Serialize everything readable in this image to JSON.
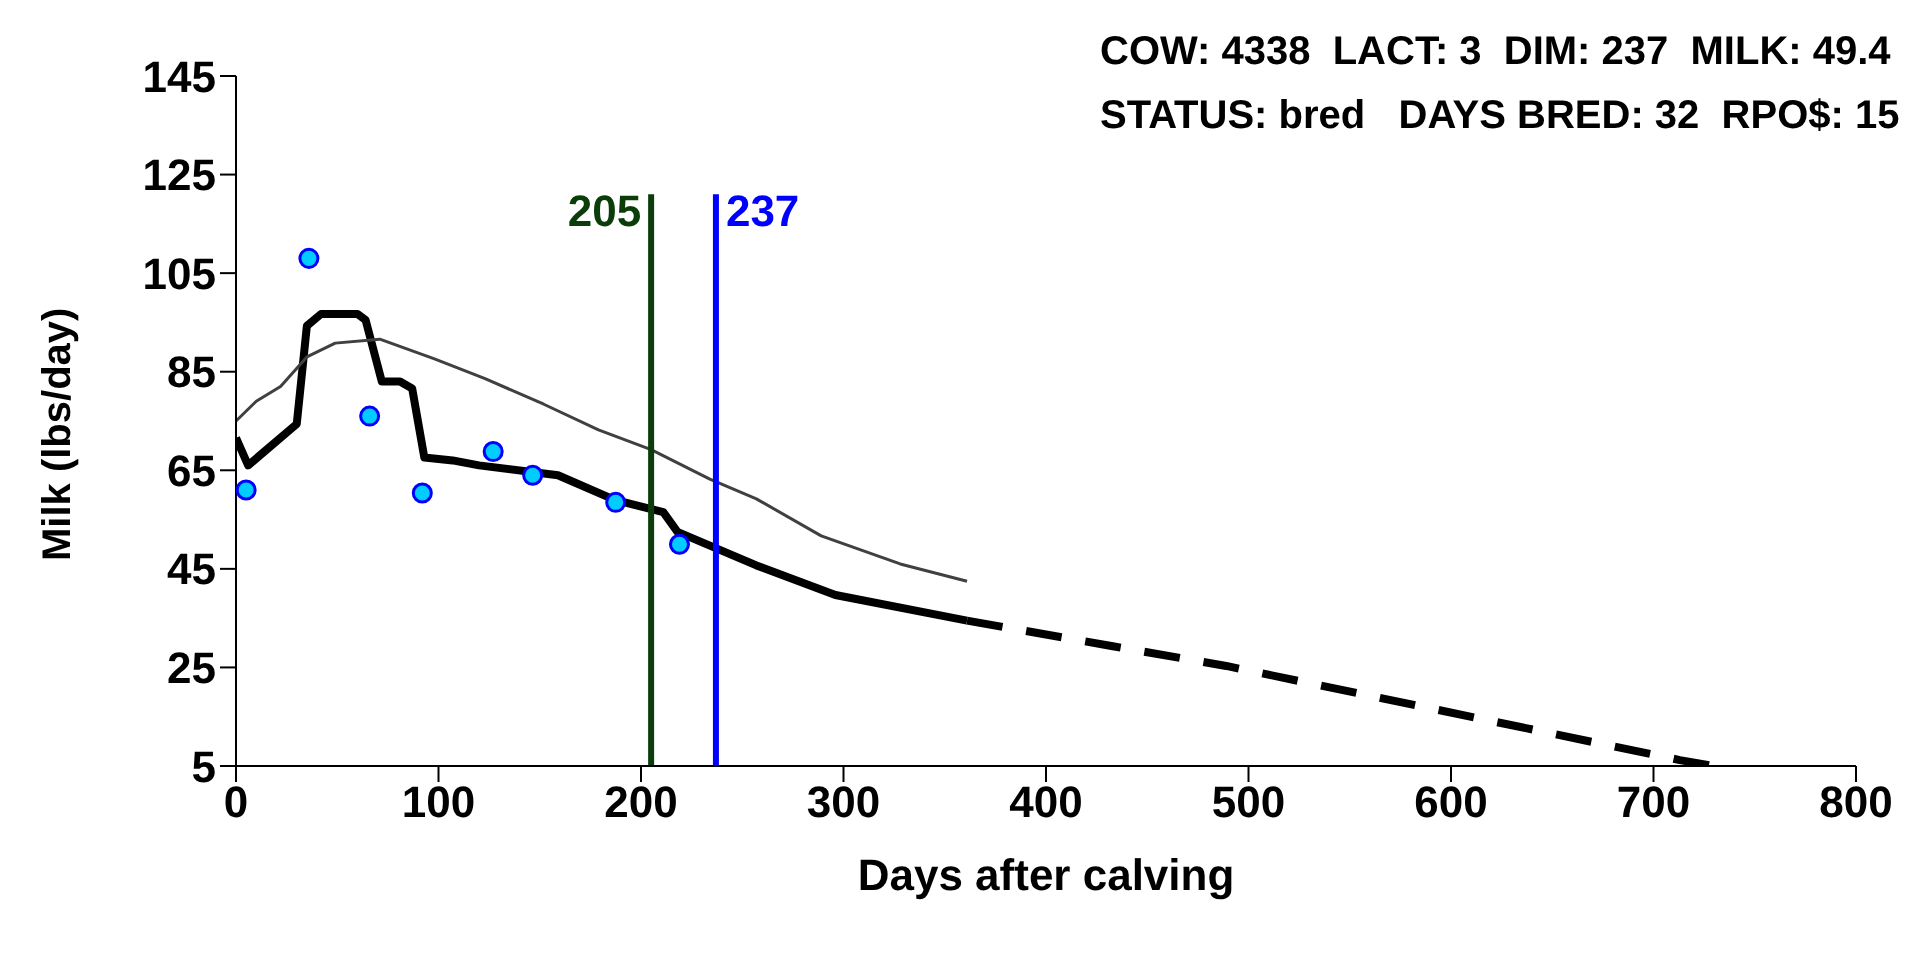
{
  "chart_data": {
    "type": "line",
    "xlabel": "Days after calving",
    "ylabel": "Milk (lbs/day)",
    "annotations": [
      "COW: 4338  LACT: 3  DIM: 237  MILK: 49.4",
      "STATUS: bred   DAYS BRED: 32  RPO$: 15"
    ],
    "series": [
      {
        "type": "line",
        "color": "#000000",
        "line_style": "solid",
        "marker": "none",
        "x": [
          0,
          6,
          30,
          35,
          42,
          60,
          64,
          72,
          81,
          87,
          93,
          107,
          120,
          159,
          187,
          211,
          218,
          257,
          296,
          361
        ],
        "values": [
          71.6,
          66,
          74.4,
          94.3,
          96.7,
          96.7,
          95.5,
          83,
          83,
          81.6,
          67.6,
          67,
          66,
          64,
          59,
          56.5,
          52.5,
          45.7,
          39.7,
          34.5
        ]
      },
      {
        "type": "line",
        "color": "#000000",
        "line_style": "dashed",
        "marker": "none",
        "x": [
          361,
          433,
          489,
          713,
          730
        ],
        "values": [
          34.5,
          29.3,
          25.3,
          6.2,
          5
        ]
      },
      {
        "type": "line",
        "color": "#404040",
        "line_style": "solid",
        "marker": "none",
        "x": [
          0,
          10,
          22,
          35,
          49,
          71,
          98,
          123,
          152,
          179,
          205,
          234,
          257,
          289,
          328,
          361
        ],
        "values": [
          75,
          79,
          82,
          88,
          90.8,
          91.6,
          87.6,
          83.6,
          78.4,
          73.2,
          69.2,
          63.2,
          59.2,
          51.7,
          46,
          42.5
        ]
      },
      {
        "type": "scatter",
        "color": "#00ccff",
        "marker": "circle",
        "x": [
          5,
          36,
          66,
          92,
          127,
          146.5,
          187.5,
          219
        ],
        "values": [
          61,
          108,
          76,
          60.4,
          68.8,
          64,
          58.5,
          50
        ]
      }
    ],
    "ref_lines": [
      {
        "axis": "x",
        "value": 205,
        "label": "205",
        "color": "#0a3d0a"
      },
      {
        "axis": "x",
        "value": 237,
        "label": "237",
        "color": "#0000ff"
      }
    ],
    "xlim": [
      0,
      800
    ],
    "xticks": [
      0,
      100,
      200,
      300,
      400,
      500,
      600,
      700,
      800
    ],
    "ylim": [
      5,
      145
    ],
    "yticks": [
      5,
      25,
      45,
      65,
      85,
      105,
      125,
      145
    ]
  }
}
